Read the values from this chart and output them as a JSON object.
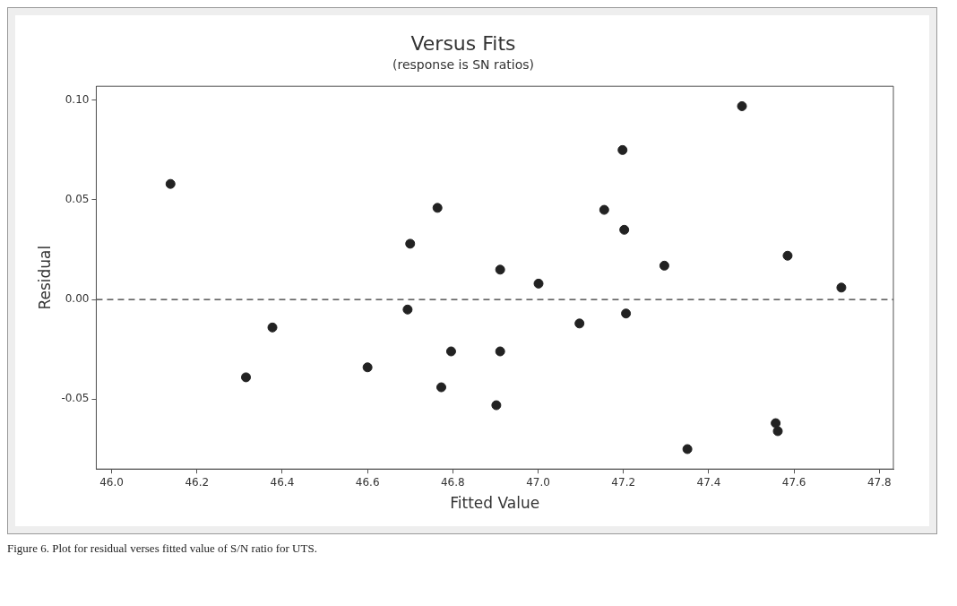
{
  "chart_data": {
    "type": "scatter",
    "title": "Versus Fits",
    "subtitle": "(response is SN ratios)",
    "xlabel": "Fitted Value",
    "ylabel": "Residual",
    "x": [
      46.138,
      46.764,
      46.7,
      46.911,
      46.694,
      46.377,
      46.796,
      46.911,
      46.6,
      46.315,
      46.773,
      46.902,
      47.478,
      47.198,
      47.155,
      47.202,
      47.296,
      47.585,
      47.711,
      47.001,
      47.206,
      47.097,
      47.35,
      47.557,
      47.562
    ],
    "series": [
      {
        "color": "#222222",
        "values": [
          0.058,
          0.046,
          0.028,
          0.015,
          -0.005,
          -0.014,
          -0.026,
          -0.026,
          -0.034,
          -0.039,
          -0.044,
          -0.053,
          0.097,
          0.075,
          0.045,
          0.035,
          0.017,
          0.022,
          0.006,
          0.008,
          -0.007,
          -0.012,
          -0.075,
          -0.062,
          -0.066
        ]
      }
    ],
    "xlim": [
      45.964,
      47.833
    ],
    "ylim": [
      -0.085,
      0.107
    ],
    "xticks": [
      {
        "value": 46,
        "label": "46.0"
      },
      46.2,
      46.4,
      46.6,
      46.8,
      {
        "value": 47,
        "label": "47.0"
      },
      47.2,
      47.4,
      47.6,
      47.8
    ],
    "yticks": [
      {
        "value": -0.05,
        "label": "-0.05"
      },
      {
        "value": 0,
        "label": "0.00"
      },
      0.05,
      {
        "value": 0.1,
        "label": "0.10"
      }
    ],
    "ref_lines": [
      {
        "axis": "y",
        "value": 0,
        "line_style": "dashed",
        "color": "#333333"
      }
    ],
    "marker": "circle",
    "grid": false,
    "legend": false,
    "annotations": [
      "Figure 6. Plot for residual verses fitted value of S/N ratio for UTS."
    ]
  }
}
